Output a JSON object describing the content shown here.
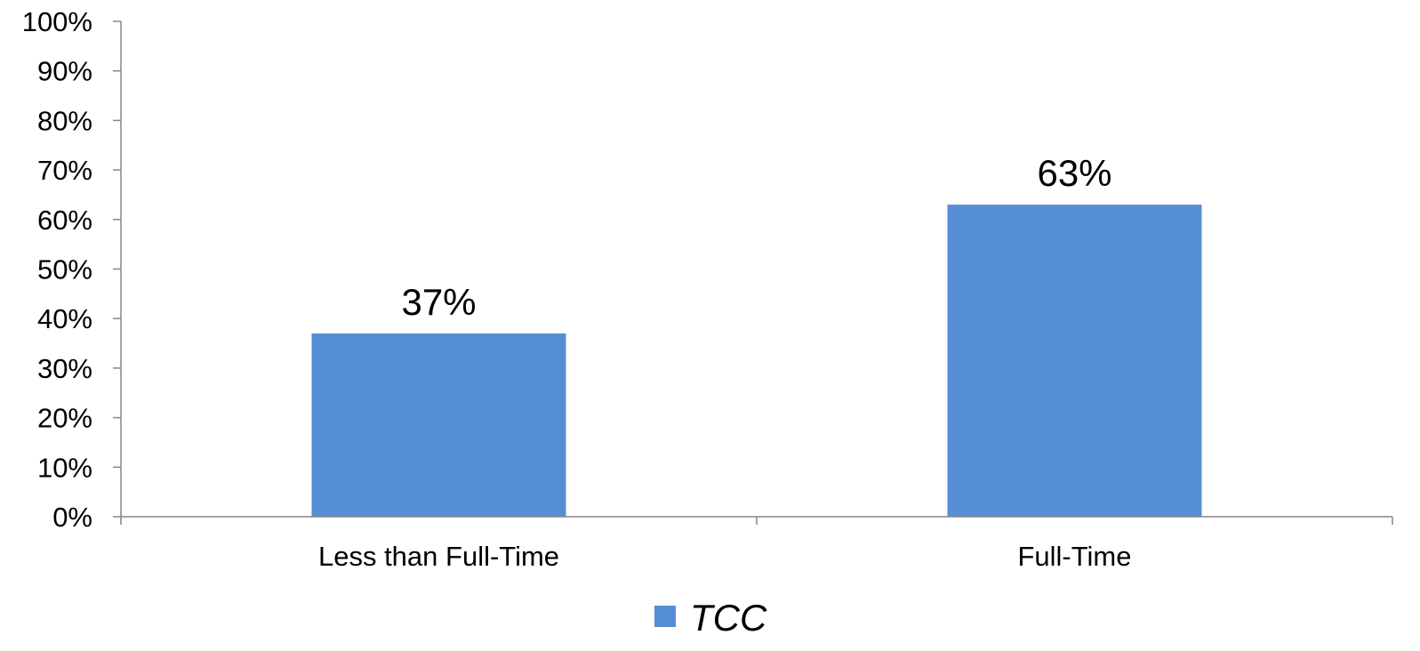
{
  "chart_data": {
    "type": "bar",
    "categories": [
      "Less than Full-Time",
      "Full-Time"
    ],
    "series": [
      {
        "name": "TCC",
        "values": [
          0.37,
          0.63
        ],
        "color": "#558ed5"
      }
    ],
    "data_labels": [
      "37%",
      "63%"
    ],
    "title": "",
    "xlabel": "",
    "ylabel": "",
    "ylim": [
      0,
      1
    ],
    "yticks": [
      0,
      0.1,
      0.2,
      0.3,
      0.4,
      0.5,
      0.6,
      0.7,
      0.8,
      0.9,
      1.0
    ],
    "ytick_labels": [
      "0%",
      "10%",
      "20%",
      "30%",
      "40%",
      "50%",
      "60%",
      "70%",
      "80%",
      "90%",
      "100%"
    ],
    "grid": false,
    "legend": {
      "position": "bottom",
      "entries": [
        "TCC"
      ]
    },
    "axis_color": "#868686"
  }
}
